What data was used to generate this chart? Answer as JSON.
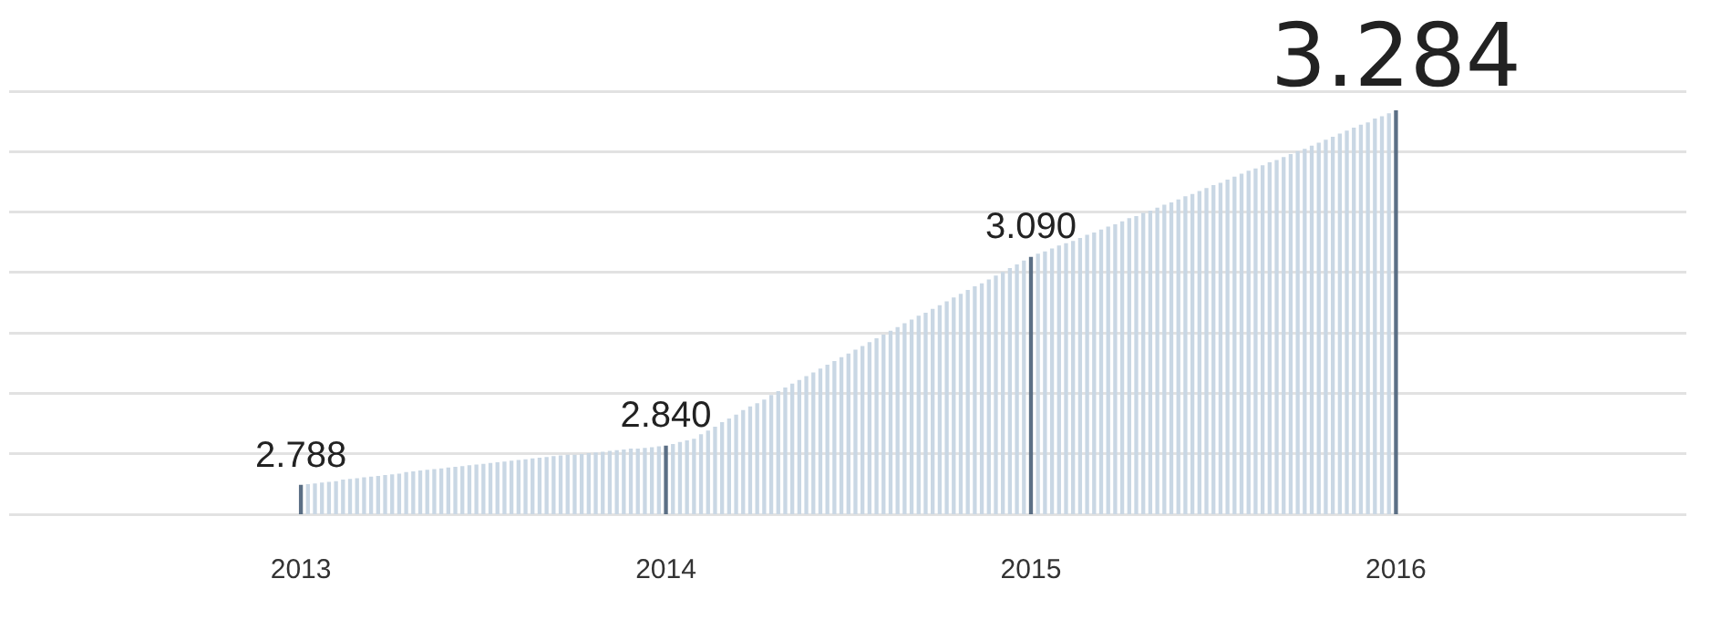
{
  "chart_data": {
    "type": "bar",
    "grid": "y",
    "legend": false,
    "tick_labels": "x",
    "ylim": [
      2.75,
      3.31
    ],
    "yticks": [
      {
        "value": 2.75,
        "label": null
      },
      {
        "value": 2.83,
        "label": null
      },
      {
        "value": 2.91,
        "label": null
      },
      {
        "value": 2.99,
        "label": null
      },
      {
        "value": 3.07,
        "label": null
      },
      {
        "value": 3.15,
        "label": null
      },
      {
        "value": 3.23,
        "label": null
      },
      {
        "value": 3.31,
        "label": null
      }
    ],
    "categories": [
      "2013",
      null,
      null,
      null,
      null,
      null,
      null,
      null,
      null,
      null,
      null,
      null,
      null,
      null,
      null,
      null,
      null,
      null,
      null,
      null,
      null,
      null,
      null,
      null,
      null,
      null,
      null,
      null,
      null,
      null,
      null,
      null,
      null,
      null,
      null,
      null,
      null,
      null,
      null,
      null,
      null,
      null,
      null,
      null,
      null,
      null,
      null,
      null,
      null,
      null,
      null,
      null,
      "2014",
      null,
      null,
      null,
      null,
      null,
      null,
      null,
      null,
      null,
      null,
      null,
      null,
      null,
      null,
      null,
      null,
      null,
      null,
      null,
      null,
      null,
      null,
      null,
      null,
      null,
      null,
      null,
      null,
      null,
      null,
      null,
      null,
      null,
      null,
      null,
      null,
      null,
      null,
      null,
      null,
      null,
      null,
      null,
      null,
      null,
      null,
      null,
      null,
      null,
      null,
      null,
      "2015",
      null,
      null,
      null,
      null,
      null,
      null,
      null,
      null,
      null,
      null,
      null,
      null,
      null,
      null,
      null,
      null,
      null,
      null,
      null,
      null,
      null,
      null,
      null,
      null,
      null,
      null,
      null,
      null,
      null,
      null,
      null,
      null,
      null,
      null,
      null,
      null,
      null,
      null,
      null,
      null,
      null,
      null,
      null,
      null,
      null,
      null,
      null,
      null,
      null,
      null,
      null,
      "2016"
    ],
    "values": [
      2.788,
      2.789,
      2.79,
      2.791,
      2.792,
      2.793,
      2.795,
      2.796,
      2.797,
      2.798,
      2.799,
      2.8,
      2.801,
      2.802,
      2.803,
      2.805,
      2.806,
      2.807,
      2.808,
      2.809,
      2.81,
      2.811,
      2.812,
      2.813,
      2.814,
      2.815,
      2.816,
      2.817,
      2.818,
      2.819,
      2.82,
      2.821,
      2.822,
      2.823,
      2.824,
      2.825,
      2.826,
      2.827,
      2.828,
      2.828,
      2.829,
      2.83,
      2.831,
      2.832,
      2.833,
      2.834,
      2.835,
      2.836,
      2.836,
      2.837,
      2.838,
      2.839,
      2.84,
      2.842,
      2.845,
      2.847,
      2.849,
      2.855,
      2.86,
      2.865,
      2.871,
      2.876,
      2.881,
      2.887,
      2.892,
      2.896,
      2.901,
      2.907,
      2.912,
      2.917,
      2.922,
      2.927,
      2.932,
      2.937,
      2.942,
      2.947,
      2.952,
      2.957,
      2.962,
      2.967,
      2.972,
      2.977,
      2.982,
      2.987,
      2.992,
      2.997,
      3.002,
      3.007,
      3.012,
      3.016,
      3.021,
      3.026,
      3.031,
      3.036,
      3.041,
      3.046,
      3.051,
      3.055,
      3.06,
      3.065,
      3.07,
      3.075,
      3.08,
      3.085,
      3.09,
      3.094,
      3.097,
      3.101,
      3.105,
      3.108,
      3.111,
      3.115,
      3.119,
      3.122,
      3.126,
      3.13,
      3.133,
      3.137,
      3.141,
      3.144,
      3.148,
      3.151,
      3.155,
      3.159,
      3.162,
      3.166,
      3.17,
      3.173,
      3.177,
      3.181,
      3.185,
      3.188,
      3.192,
      3.196,
      3.2,
      3.204,
      3.207,
      3.211,
      3.215,
      3.218,
      3.222,
      3.226,
      3.23,
      3.233,
      3.237,
      3.241,
      3.245,
      3.249,
      3.253,
      3.257,
      3.261,
      3.265,
      3.268,
      3.273,
      3.276,
      3.28,
      3.284
    ],
    "value_labels": [
      "2.788",
      null,
      null,
      null,
      null,
      null,
      null,
      null,
      null,
      null,
      null,
      null,
      null,
      null,
      null,
      null,
      null,
      null,
      null,
      null,
      null,
      null,
      null,
      null,
      null,
      null,
      null,
      null,
      null,
      null,
      null,
      null,
      null,
      null,
      null,
      null,
      null,
      null,
      null,
      null,
      null,
      null,
      null,
      null,
      null,
      null,
      null,
      null,
      null,
      null,
      null,
      null,
      "2.840",
      null,
      null,
      null,
      null,
      null,
      null,
      null,
      null,
      null,
      null,
      null,
      null,
      null,
      null,
      null,
      null,
      null,
      null,
      null,
      null,
      null,
      null,
      null,
      null,
      null,
      null,
      null,
      null,
      null,
      null,
      null,
      null,
      null,
      null,
      null,
      null,
      null,
      null,
      null,
      null,
      null,
      null,
      null,
      null,
      null,
      null,
      null,
      null,
      null,
      null,
      null,
      "3.090",
      null,
      null,
      null,
      null,
      null,
      null,
      null,
      null,
      null,
      null,
      null,
      null,
      null,
      null,
      null,
      null,
      null,
      null,
      null,
      null,
      null,
      null,
      null,
      null,
      null,
      null,
      null,
      null,
      null,
      null,
      null,
      null,
      null,
      null,
      null,
      null,
      null,
      null,
      null,
      null,
      null,
      null,
      null,
      null,
      null,
      null,
      null,
      null,
      null,
      null,
      null,
      "3.284"
    ],
    "colors": [
      "#5b6f85",
      "#c9d7e4",
      "#c9d7e4",
      "#c9d7e4",
      "#c9d7e4",
      "#c9d7e4",
      "#c9d7e4",
      "#c9d7e4",
      "#c9d7e4",
      "#c9d7e4",
      "#c9d7e4",
      "#c9d7e4",
      "#c9d7e4",
      "#c9d7e4",
      "#c9d7e4",
      "#c9d7e4",
      "#c9d7e4",
      "#c9d7e4",
      "#c9d7e4",
      "#c9d7e4",
      "#c9d7e4",
      "#c9d7e4",
      "#c9d7e4",
      "#c9d7e4",
      "#c9d7e4",
      "#c9d7e4",
      "#c9d7e4",
      "#c9d7e4",
      "#c9d7e4",
      "#c9d7e4",
      "#c9d7e4",
      "#c9d7e4",
      "#c9d7e4",
      "#c9d7e4",
      "#c9d7e4",
      "#c9d7e4",
      "#c9d7e4",
      "#c9d7e4",
      "#c9d7e4",
      "#c9d7e4",
      "#c9d7e4",
      "#c9d7e4",
      "#c9d7e4",
      "#c9d7e4",
      "#c9d7e4",
      "#c9d7e4",
      "#c9d7e4",
      "#c9d7e4",
      "#c9d7e4",
      "#c9d7e4",
      "#c9d7e4",
      "#c9d7e4",
      "#5b6f85",
      "#c9d7e4",
      "#c9d7e4",
      "#c9d7e4",
      "#c9d7e4",
      "#c9d7e4",
      "#c9d7e4",
      "#c9d7e4",
      "#c9d7e4",
      "#c9d7e4",
      "#c9d7e4",
      "#c9d7e4",
      "#c9d7e4",
      "#c9d7e4",
      "#c9d7e4",
      "#c9d7e4",
      "#c9d7e4",
      "#c9d7e4",
      "#c9d7e4",
      "#c9d7e4",
      "#c9d7e4",
      "#c9d7e4",
      "#c9d7e4",
      "#c9d7e4",
      "#c9d7e4",
      "#c9d7e4",
      "#c9d7e4",
      "#c9d7e4",
      "#c9d7e4",
      "#c9d7e4",
      "#c9d7e4",
      "#c9d7e4",
      "#c9d7e4",
      "#c9d7e4",
      "#c9d7e4",
      "#c9d7e4",
      "#c9d7e4",
      "#c9d7e4",
      "#c9d7e4",
      "#c9d7e4",
      "#c9d7e4",
      "#c9d7e4",
      "#c9d7e4",
      "#c9d7e4",
      "#c9d7e4",
      "#c9d7e4",
      "#c9d7e4",
      "#c9d7e4",
      "#c9d7e4",
      "#c9d7e4",
      "#c9d7e4",
      "#c9d7e4",
      "#5b6f85",
      "#c9d7e4",
      "#c9d7e4",
      "#c9d7e4",
      "#c9d7e4",
      "#c9d7e4",
      "#c9d7e4",
      "#c9d7e4",
      "#c9d7e4",
      "#c9d7e4",
      "#c9d7e4",
      "#c9d7e4",
      "#c9d7e4",
      "#c9d7e4",
      "#c9d7e4",
      "#c9d7e4",
      "#c9d7e4",
      "#c9d7e4",
      "#c9d7e4",
      "#c9d7e4",
      "#c9d7e4",
      "#c9d7e4",
      "#c9d7e4",
      "#c9d7e4",
      "#c9d7e4",
      "#c9d7e4",
      "#c9d7e4",
      "#c9d7e4",
      "#c9d7e4",
      "#c9d7e4",
      "#c9d7e4",
      "#c9d7e4",
      "#c9d7e4",
      "#c9d7e4",
      "#c9d7e4",
      "#c9d7e4",
      "#c9d7e4",
      "#c9d7e4",
      "#c9d7e4",
      "#c9d7e4",
      "#c9d7e4",
      "#c9d7e4",
      "#c9d7e4",
      "#c9d7e4",
      "#c9d7e4",
      "#c9d7e4",
      "#c9d7e4",
      "#c9d7e4",
      "#c9d7e4",
      "#c9d7e4",
      "#c9d7e4",
      "#c9d7e4",
      "#5b6f85"
    ]
  }
}
